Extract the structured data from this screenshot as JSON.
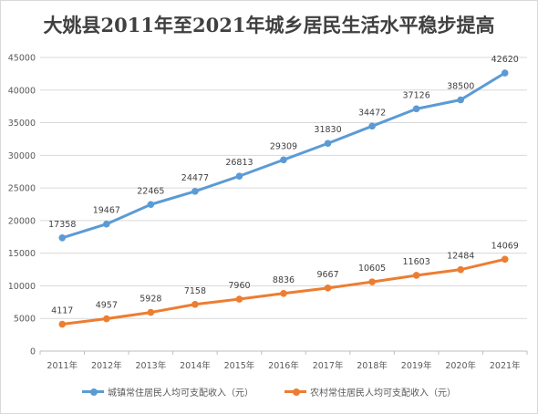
{
  "chart_data": {
    "type": "line",
    "title": "大姚县2011年至2021年城乡居民生活水平稳步提高",
    "categories": [
      "2011年",
      "2012年",
      "2013年",
      "2014年",
      "2015年",
      "2016年",
      "2017年",
      "2018年",
      "2019年",
      "2020年",
      "2021年"
    ],
    "yticks": [
      "0",
      "5000",
      "10000",
      "15000",
      "20000",
      "25000",
      "30000",
      "35000",
      "40000",
      "45000"
    ],
    "ylim": [
      0,
      45000
    ],
    "grid": true,
    "legend_position": "bottom",
    "series": [
      {
        "name": "城镇常住居民人均可支配收入（元）",
        "color": "#5b9bd5",
        "values": [
          17358,
          19467,
          22465,
          24477,
          26813,
          29309,
          31830,
          34472,
          37126,
          38500,
          42620
        ]
      },
      {
        "name": "农村常住居民人均可支配收入（元）",
        "color": "#ed7d31",
        "values": [
          4117,
          4957,
          5928,
          7158,
          7960,
          8836,
          9667,
          10605,
          11603,
          12484,
          14069
        ]
      }
    ]
  }
}
